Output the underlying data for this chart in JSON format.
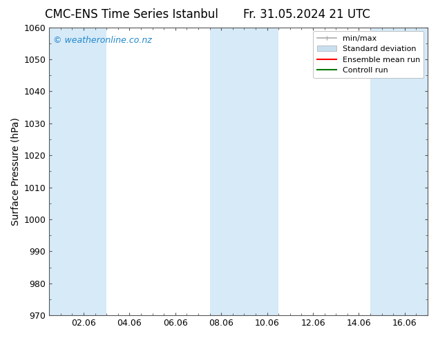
{
  "title_left": "CMC-ENS Time Series Istanbul",
  "title_right": "Fr. 31.05.2024 21 UTC",
  "ylabel": "Surface Pressure (hPa)",
  "ylim": [
    970,
    1060
  ],
  "yticks": [
    970,
    980,
    990,
    1000,
    1010,
    1020,
    1030,
    1040,
    1050,
    1060
  ],
  "xtick_labels": [
    "02.06",
    "04.06",
    "06.06",
    "08.06",
    "10.06",
    "12.06",
    "14.06",
    "16.06"
  ],
  "xtick_positions": [
    2.0,
    4.0,
    6.0,
    8.0,
    10.0,
    12.0,
    14.0,
    16.0
  ],
  "xlim": [
    0.5,
    17.0
  ],
  "shaded_bands": [
    {
      "x_start": 0.5,
      "x_end": 3.0
    },
    {
      "x_start": 7.5,
      "x_end": 10.5
    },
    {
      "x_start": 14.5,
      "x_end": 17.0
    }
  ],
  "band_color": "#d6eaf8",
  "watermark_text": "© weatheronline.co.nz",
  "watermark_color": "#2288cc",
  "background_color": "#ffffff",
  "legend_items": [
    {
      "label": "min/max",
      "color": "#aaaaaa",
      "type": "errorbar"
    },
    {
      "label": "Standard deviation",
      "color": "#c8dff0",
      "type": "bar"
    },
    {
      "label": "Ensemble mean run",
      "color": "#ff0000",
      "type": "line"
    },
    {
      "label": "Controll run",
      "color": "#007700",
      "type": "line"
    }
  ],
  "title_fontsize": 12,
  "axis_label_fontsize": 10,
  "tick_fontsize": 9,
  "legend_fontsize": 8
}
